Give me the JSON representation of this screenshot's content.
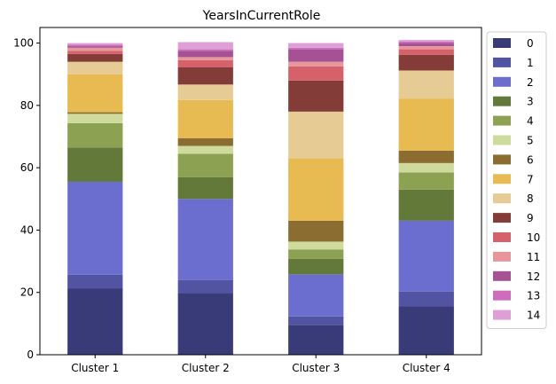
{
  "chart_data": {
    "type": "bar",
    "stacked": true,
    "title": "YearsInCurrentRole",
    "xlabel": "",
    "ylabel": "",
    "ylim": [
      0,
      105
    ],
    "yticks": [
      0,
      20,
      40,
      60,
      80,
      100
    ],
    "grid": false,
    "legend_placement": "right-outside-top",
    "categories": [
      "Cluster 1",
      "Cluster 2",
      "Cluster 3",
      "Cluster 4"
    ],
    "series": [
      {
        "name": "0",
        "color": "#393b79",
        "values": [
          21.2,
          19.8,
          9.5,
          15.5
        ]
      },
      {
        "name": "1",
        "color": "#5254a3",
        "values": [
          4.5,
          4.2,
          2.8,
          4.8
        ]
      },
      {
        "name": "2",
        "color": "#6b6ecf",
        "values": [
          29.8,
          26.0,
          13.5,
          22.7
        ]
      },
      {
        "name": "3",
        "color": "#637939",
        "values": [
          11.0,
          7.0,
          5.0,
          10.0
        ]
      },
      {
        "name": "4",
        "color": "#8ca252",
        "values": [
          7.8,
          7.5,
          3.0,
          5.5
        ]
      },
      {
        "name": "5",
        "color": "#cedb9c",
        "values": [
          3.0,
          2.5,
          2.5,
          3.0
        ]
      },
      {
        "name": "6",
        "color": "#8c6d31",
        "values": [
          0.5,
          2.5,
          6.7,
          4.0
        ]
      },
      {
        "name": "7",
        "color": "#e7ba52",
        "values": [
          12.2,
          12.2,
          20.0,
          16.7
        ]
      },
      {
        "name": "8",
        "color": "#e7cb94",
        "values": [
          4.0,
          5.0,
          15.0,
          9.0
        ]
      },
      {
        "name": "9",
        "color": "#843c39",
        "values": [
          2.5,
          5.5,
          10.0,
          5.0
        ]
      },
      {
        "name": "10",
        "color": "#d6616b",
        "values": [
          1.0,
          2.3,
          4.5,
          1.8
        ]
      },
      {
        "name": "11",
        "color": "#e7969c",
        "values": [
          1.0,
          1.0,
          1.5,
          1.0
        ]
      },
      {
        "name": "12",
        "color": "#a55194",
        "values": [
          0.5,
          2.0,
          4.0,
          1.0
        ]
      },
      {
        "name": "13",
        "color": "#ce6dbd",
        "values": [
          0.5,
          0.5,
          0.5,
          0.5
        ]
      },
      {
        "name": "14",
        "color": "#de9ed6",
        "values": [
          0.5,
          2.3,
          1.5,
          0.5
        ]
      }
    ]
  }
}
